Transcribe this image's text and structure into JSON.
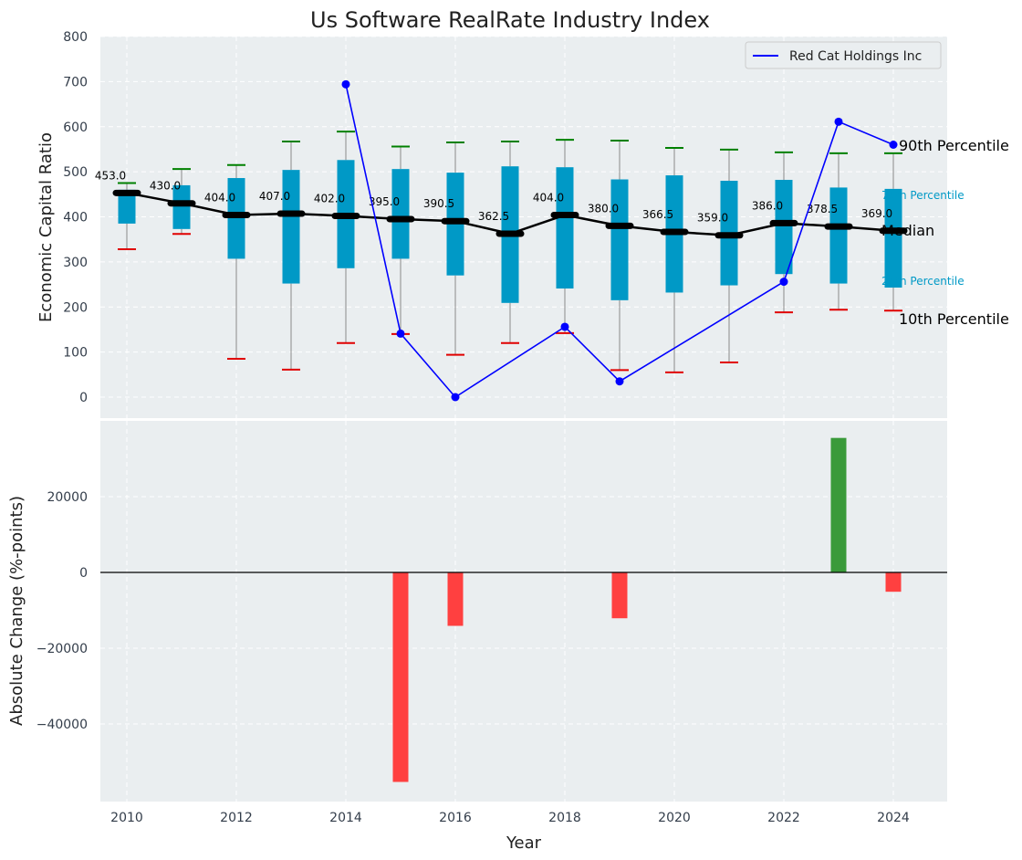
{
  "chart_data": [
    {
      "type": "box",
      "title": "Us Software RealRate Industry Index",
      "ylabel": "Economic Capital Ratio",
      "ylim": [
        -50,
        800
      ],
      "yticks": [
        0,
        100,
        200,
        300,
        400,
        500,
        600,
        700,
        800
      ],
      "grid": true,
      "legend": {
        "placement": "top-right",
        "entries": [
          "Red Cat Holdings Inc"
        ]
      },
      "years": [
        2010,
        2011,
        2012,
        2013,
        2014,
        2015,
        2016,
        2017,
        2018,
        2019,
        2020,
        2021,
        2022,
        2023,
        2024
      ],
      "p10": [
        328,
        362,
        85,
        61,
        120,
        140,
        94,
        120,
        142,
        60,
        55,
        77,
        188,
        194,
        192
      ],
      "p25": [
        385,
        373,
        307,
        252,
        286,
        307,
        270,
        209,
        241,
        215,
        232,
        248,
        273,
        252,
        243
      ],
      "median": [
        453.0,
        430.0,
        404.0,
        407.0,
        402.0,
        395.0,
        390.5,
        362.5,
        404.0,
        380.0,
        366.5,
        359.0,
        386.0,
        378.5,
        369.0
      ],
      "median_labels": [
        "453.0",
        "430.0",
        "404.0",
        "407.0",
        "402.0",
        "395.0",
        "390.5",
        "362.5",
        "404.0",
        "380.0",
        "366.5",
        "359.0",
        "386.0",
        "378.5",
        "369.0"
      ],
      "p75": [
        460,
        470,
        486,
        504,
        526,
        506,
        498,
        512,
        510,
        483,
        492,
        480,
        482,
        465,
        462
      ],
      "p90": [
        475,
        506,
        515,
        567,
        589,
        556,
        565,
        567,
        571,
        569,
        553,
        549,
        543,
        541,
        541
      ],
      "company": {
        "name": "Red Cat Holdings Inc",
        "color": "#0000ff",
        "years": [
          2014,
          2015,
          2016,
          2018,
          2019,
          2022,
          2023,
          2024
        ],
        "values": [
          694,
          141,
          0,
          156,
          35,
          256,
          611,
          560
        ]
      },
      "percentile_labels": {
        "p90": "90th Percentile",
        "p75": "75th Percentile",
        "median": "Median",
        "p25": "25th Percentile",
        "p10": "10th Percentile"
      },
      "colors": {
        "box": "#0099c6",
        "median_line": "#000000",
        "p90_cap": "#008000",
        "p10_cap": "#e00000",
        "whisker": "#8a8a8a"
      }
    },
    {
      "type": "bar",
      "ylabel": "Absolute Change (%-points)",
      "xlabel": "Year",
      "ylim": [
        -59000,
        39000
      ],
      "yticks": [
        -40000,
        -20000,
        0,
        20000
      ],
      "ytick_labels": [
        "−40000",
        "−20000",
        "0",
        "20000"
      ],
      "xticks": [
        2010,
        2012,
        2014,
        2016,
        2018,
        2020,
        2022,
        2024
      ],
      "xlim": [
        2009.5,
        2025
      ],
      "grid": true,
      "categories": [
        2015,
        2016,
        2019,
        2023,
        2024
      ],
      "values": [
        -55300,
        -14100,
        -12100,
        35500,
        -5100
      ],
      "colors": {
        "positive": "#3a9a3a",
        "negative": "#ff4040"
      }
    }
  ]
}
